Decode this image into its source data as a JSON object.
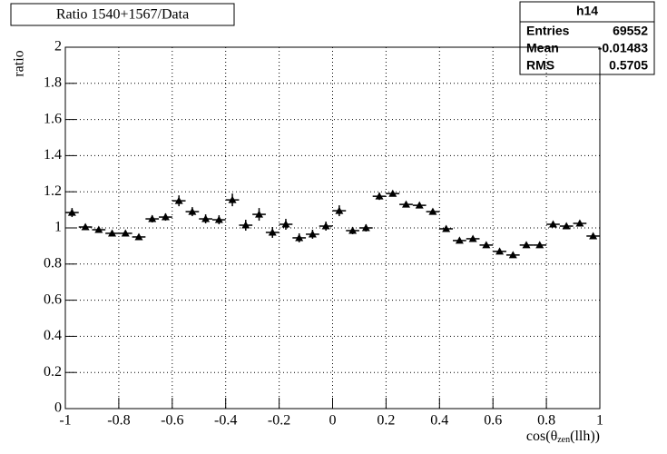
{
  "chart_data": {
    "type": "histogram",
    "title": "Ratio 1540+1567/Data",
    "y_label": "ratio",
    "x_label": {
      "main": "cos(θ",
      "sub": "zen",
      "tail": "(llh))"
    },
    "stats": {
      "name": "h14",
      "labels": [
        "Entries",
        "Mean",
        "RMS"
      ],
      "values": [
        69552,
        -0.01483,
        0.5705
      ]
    },
    "bins": [
      -1,
      -0.95,
      -0.9,
      -0.85,
      -0.8,
      -0.75,
      -0.7,
      -0.65,
      -0.6,
      -0.55,
      -0.5,
      -0.45,
      -0.4,
      -0.35,
      -0.3,
      -0.25,
      -0.2,
      -0.15,
      -0.1,
      -0.05,
      0,
      0.05,
      0.1,
      0.15,
      0.2,
      0.25,
      0.3,
      0.35,
      0.4,
      0.45,
      0.5,
      0.55,
      0.6,
      0.65,
      0.7,
      0.75,
      0.8,
      0.85,
      0.9,
      0.95,
      1
    ],
    "values": [
      1.085,
      1.005,
      0.99,
      0.97,
      0.97,
      0.95,
      1.05,
      1.06,
      1.15,
      1.09,
      1.05,
      1.045,
      1.155,
      1.015,
      1.075,
      0.975,
      1.02,
      0.945,
      0.965,
      1.01,
      1.095,
      0.985,
      1.0,
      1.175,
      1.19,
      1.13,
      1.125,
      1.09,
      0.995,
      0.93,
      0.94,
      0.905,
      0.87,
      0.85,
      0.905,
      0.905,
      1.02,
      1.01,
      1.025,
      0.955
    ],
    "errors": [
      0.025,
      0.015,
      0.015,
      0.015,
      0.015,
      0.015,
      0.02,
      0.02,
      0.03,
      0.025,
      0.025,
      0.025,
      0.035,
      0.03,
      0.035,
      0.03,
      0.03,
      0.025,
      0.025,
      0.025,
      0.03,
      0.02,
      0.02,
      0.02,
      0.012,
      0.01,
      0.01,
      0.01,
      0.01,
      0.01,
      0.01,
      0.01,
      0.01,
      0.01,
      0.01,
      0.01,
      0.012,
      0.012,
      0.015,
      0.015
    ],
    "color": "#000000",
    "xlim": [
      -1,
      1
    ],
    "xticks": [
      -1,
      -0.8,
      -0.6,
      -0.4,
      -0.2,
      0,
      0.2,
      0.4,
      0.6,
      0.8,
      1
    ],
    "ylim": [
      0,
      2
    ],
    "yticks": [
      0,
      0.2,
      0.4,
      0.6,
      0.8,
      1,
      1.2,
      1.4,
      1.6,
      1.8,
      2
    ],
    "grid": true
  }
}
